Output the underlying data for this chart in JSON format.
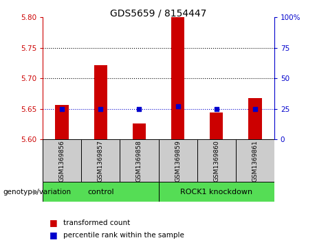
{
  "title": "GDS5659 / 8154447",
  "samples": [
    "GSM1369856",
    "GSM1369857",
    "GSM1369858",
    "GSM1369859",
    "GSM1369860",
    "GSM1369861"
  ],
  "transformed_count": [
    5.657,
    5.722,
    5.626,
    5.8,
    5.644,
    5.668
  ],
  "percentile_rank": [
    25,
    25,
    25,
    27,
    25,
    25
  ],
  "ylim_left": [
    5.6,
    5.8
  ],
  "ylim_right": [
    0,
    100
  ],
  "yticks_left": [
    5.6,
    5.65,
    5.7,
    5.75,
    5.8
  ],
  "yticks_right": [
    0,
    25,
    50,
    75,
    100
  ],
  "bar_color": "#cc0000",
  "dot_color": "#0000cc",
  "bar_width": 0.35,
  "groups": [
    {
      "label": "control",
      "indices": [
        0,
        1,
        2
      ],
      "color": "#66dd66"
    },
    {
      "label": "ROCK1 knockdown",
      "indices": [
        3,
        4,
        5
      ],
      "color": "#44ee44"
    }
  ],
  "group_label_prefix": "genotype/variation",
  "legend_tc": "transformed count",
  "legend_pr": "percentile rank within the sample",
  "bg_plot": "#ffffff",
  "bg_sample_boxes": "#cccccc",
  "title_fontsize": 10,
  "tick_fontsize": 7.5,
  "sample_fontsize": 6.5,
  "group_fontsize": 8,
  "legend_fontsize": 7.5
}
